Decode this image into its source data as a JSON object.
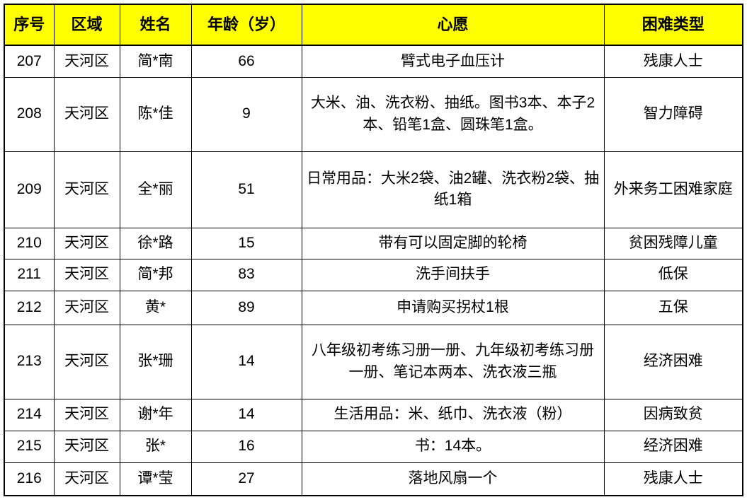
{
  "colors": {
    "header_bg": "#FFFF00",
    "border": "#000000",
    "text": "#000000"
  },
  "table": {
    "columns": [
      "序号",
      "区域",
      "姓名",
      "年龄（岁）",
      "心愿",
      "困难类型"
    ],
    "col_keys": [
      "id",
      "region",
      "name",
      "age",
      "wish",
      "difficulty-type"
    ],
    "rows": [
      {
        "cells": [
          "207",
          "天河区",
          "简*南",
          "66",
          "臂式电子血压计",
          "残康人士"
        ]
      },
      {
        "cells": [
          "208",
          "天河区",
          "陈*佳",
          "9",
          "大米、油、洗衣粉、抽纸。图书3本、本子2本、铅笔1盒、圆珠笔1盒。",
          "智力障碍"
        ]
      },
      {
        "cells": [
          "209",
          "天河区",
          "全*丽",
          "51",
          "日常用品：大米2袋、油2罐、洗衣粉2袋、抽纸1箱",
          "外来务工困难家庭"
        ]
      },
      {
        "cells": [
          "210",
          "天河区",
          "徐*路",
          "15",
          "带有可以固定脚的轮椅",
          "贫困残障儿童"
        ]
      },
      {
        "cells": [
          "211",
          "天河区",
          "简*邦",
          "83",
          "洗手间扶手",
          "低保"
        ]
      },
      {
        "cells": [
          "212",
          "天河区",
          "黄*",
          "89",
          "申请购买拐杖1根",
          "五保"
        ]
      },
      {
        "cells": [
          "213",
          "天河区",
          "张*珊",
          "14",
          "八年级初考练习册一册、九年级初考练习册一册、笔记本两本、洗衣液三瓶",
          "经济困难"
        ]
      },
      {
        "cells": [
          "214",
          "天河区",
          "谢*年",
          "14",
          "生活用品：米、纸巾、洗衣液（粉）",
          "因病致贫"
        ]
      },
      {
        "cells": [
          "215",
          "天河区",
          "张*",
          "16",
          "书：14本。",
          "经济困难"
        ]
      },
      {
        "cells": [
          "216",
          "天河区",
          "谭*莹",
          "27",
          "落地风扇一个",
          "残康人士"
        ]
      }
    ]
  }
}
